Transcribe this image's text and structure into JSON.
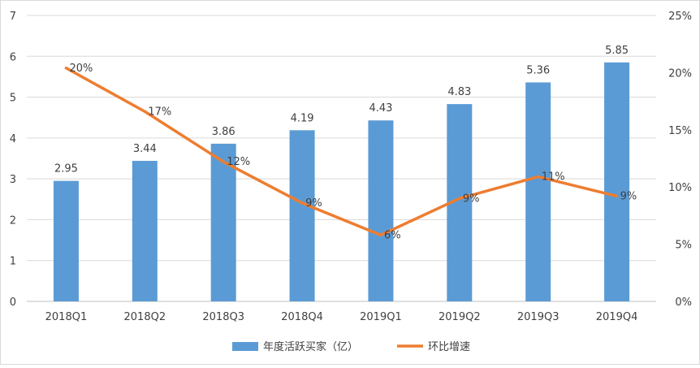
{
  "chart_data": {
    "type": "bar",
    "categories": [
      "2018Q1",
      "2018Q2",
      "2018Q3",
      "2018Q4",
      "2019Q1",
      "2019Q2",
      "2019Q3",
      "2019Q4"
    ],
    "series": [
      {
        "name": "年度活跃买家（亿）",
        "type": "bar",
        "axis": "left",
        "color": "#5B9BD5",
        "values": [
          2.95,
          3.44,
          3.86,
          4.19,
          4.43,
          4.83,
          5.36,
          5.85
        ],
        "labels": [
          "2.95",
          "3.44",
          "3.86",
          "4.19",
          "4.43",
          "4.83",
          "5.36",
          "5.85"
        ]
      },
      {
        "name": "环比增速",
        "type": "line",
        "axis": "right",
        "color": "#ED7D31",
        "values": [
          0.204,
          0.166,
          0.122,
          0.086,
          0.058,
          0.09,
          0.109,
          0.092
        ],
        "labels": [
          "20%",
          "17%",
          "12%",
          "9%",
          "6%",
          "9%",
          "11%",
          "9%"
        ]
      }
    ],
    "y_left": {
      "min": 0,
      "max": 7,
      "ticks": [
        "0",
        "1",
        "2",
        "3",
        "4",
        "5",
        "6",
        "7"
      ]
    },
    "y_right": {
      "min": 0,
      "max": 0.25,
      "ticks": [
        "0%",
        "5%",
        "10%",
        "15%",
        "20%",
        "25%"
      ]
    },
    "grid": true,
    "legend_position": "bottom"
  }
}
